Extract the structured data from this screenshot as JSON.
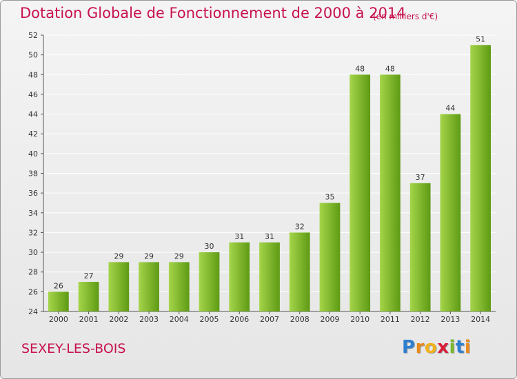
{
  "title": "Dotation Globale de Fonctionnement de 2000 à 2014",
  "subtitle": "(en milliers d'€)",
  "commune": "SEXEY-LES-BOIS",
  "brand": {
    "letters": [
      "P",
      "r",
      "o",
      "x",
      "i",
      "t",
      "i"
    ],
    "colors": [
      "#2f7fd1",
      "#e88a1a",
      "#f2b21a",
      "#d91e3a",
      "#7ab82e",
      "#2f7fd1",
      "#e88a1a"
    ]
  },
  "colors": {
    "bar_light": "#a5d54a",
    "bar_dark": "#5e9a14",
    "grid": "#ffffff",
    "title": "#c8124e"
  },
  "chart_data": {
    "type": "bar",
    "categories": [
      "2000",
      "2001",
      "2002",
      "2003",
      "2004",
      "2005",
      "2006",
      "2007",
      "2008",
      "2009",
      "2010",
      "2011",
      "2012",
      "2013",
      "2014"
    ],
    "values": [
      26,
      27,
      29,
      29,
      29,
      30,
      31,
      31,
      32,
      35,
      48,
      48,
      37,
      44,
      51
    ],
    "title": "Dotation Globale de Fonctionnement de 2000 à 2014",
    "subtitle": "(en milliers d'€)",
    "xlabel": "",
    "ylabel": "",
    "ylim": [
      24,
      52
    ],
    "yticks": [
      24,
      26,
      28,
      30,
      32,
      34,
      36,
      38,
      40,
      42,
      44,
      46,
      48,
      50,
      52
    ],
    "grid": true,
    "data_labels": true
  }
}
